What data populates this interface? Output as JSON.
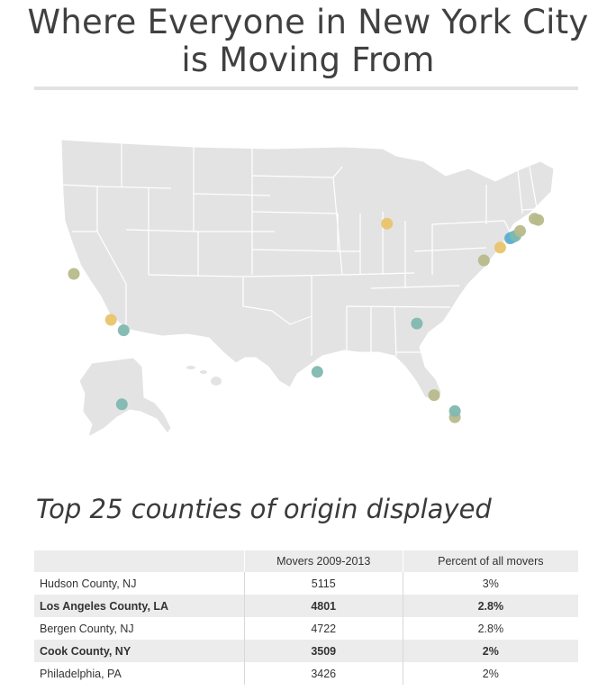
{
  "title_line1": "Where Everyone in New York City",
  "title_line2": "is Moving From",
  "subtitle": "Top 25 counties of origin displayed",
  "colors": {
    "land": "#e3e3e3",
    "border": "#ffffff",
    "gold": "#e9c46a",
    "olive": "#b8b98a",
    "teal": "#7fb8b0",
    "blue": "#5eb0d8"
  },
  "table": {
    "headers": [
      "",
      "Movers 2009-2013",
      "Percent of all movers"
    ],
    "rows": [
      {
        "county": "Hudson County, NJ",
        "movers": "5115",
        "percent": "3%"
      },
      {
        "county": "Los Angeles County, LA",
        "movers": "4801",
        "percent": "2.8%"
      },
      {
        "county": "Bergen County, NJ",
        "movers": "4722",
        "percent": "2.8%"
      },
      {
        "county": "Cook County, NY",
        "movers": "3509",
        "percent": "2%"
      },
      {
        "county": "Philadelphia, PA",
        "movers": "3426",
        "percent": "2%"
      }
    ]
  },
  "markers": [
    {
      "lon": -122.3,
      "lat": 37.8,
      "color": "olive"
    },
    {
      "lon": -118.2,
      "lat": 34.05,
      "color": "gold"
    },
    {
      "lon": -116.8,
      "lat": 33.2,
      "color": "teal"
    },
    {
      "lon": -87.7,
      "lat": 41.9,
      "color": "gold"
    },
    {
      "lon": -84.4,
      "lat": 33.75,
      "color": "teal"
    },
    {
      "lon": -95.4,
      "lat": 29.8,
      "color": "teal"
    },
    {
      "lon": -82.5,
      "lat": 27.9,
      "color": "olive"
    },
    {
      "lon": -80.2,
      "lat": 26.1,
      "color": "olive"
    },
    {
      "lon": -80.2,
      "lat": 26.6,
      "color": "teal"
    },
    {
      "lon": -77.0,
      "lat": 38.9,
      "color": "olive"
    },
    {
      "lon": -75.2,
      "lat": 39.95,
      "color": "gold"
    },
    {
      "lon": -74.1,
      "lat": 40.7,
      "color": "teal"
    },
    {
      "lon": -74.0,
      "lat": 40.75,
      "color": "blue"
    },
    {
      "lon": -73.8,
      "lat": 40.8,
      "color": "blue"
    },
    {
      "lon": -73.5,
      "lat": 40.9,
      "color": "teal"
    },
    {
      "lon": -73.0,
      "lat": 41.3,
      "color": "olive"
    },
    {
      "lon": -71.4,
      "lat": 42.3,
      "color": "olive"
    },
    {
      "lon": -71.0,
      "lat": 42.2,
      "color": "olive"
    },
    {
      "lon": -149.9,
      "lat": 61.2,
      "color": "teal"
    }
  ]
}
